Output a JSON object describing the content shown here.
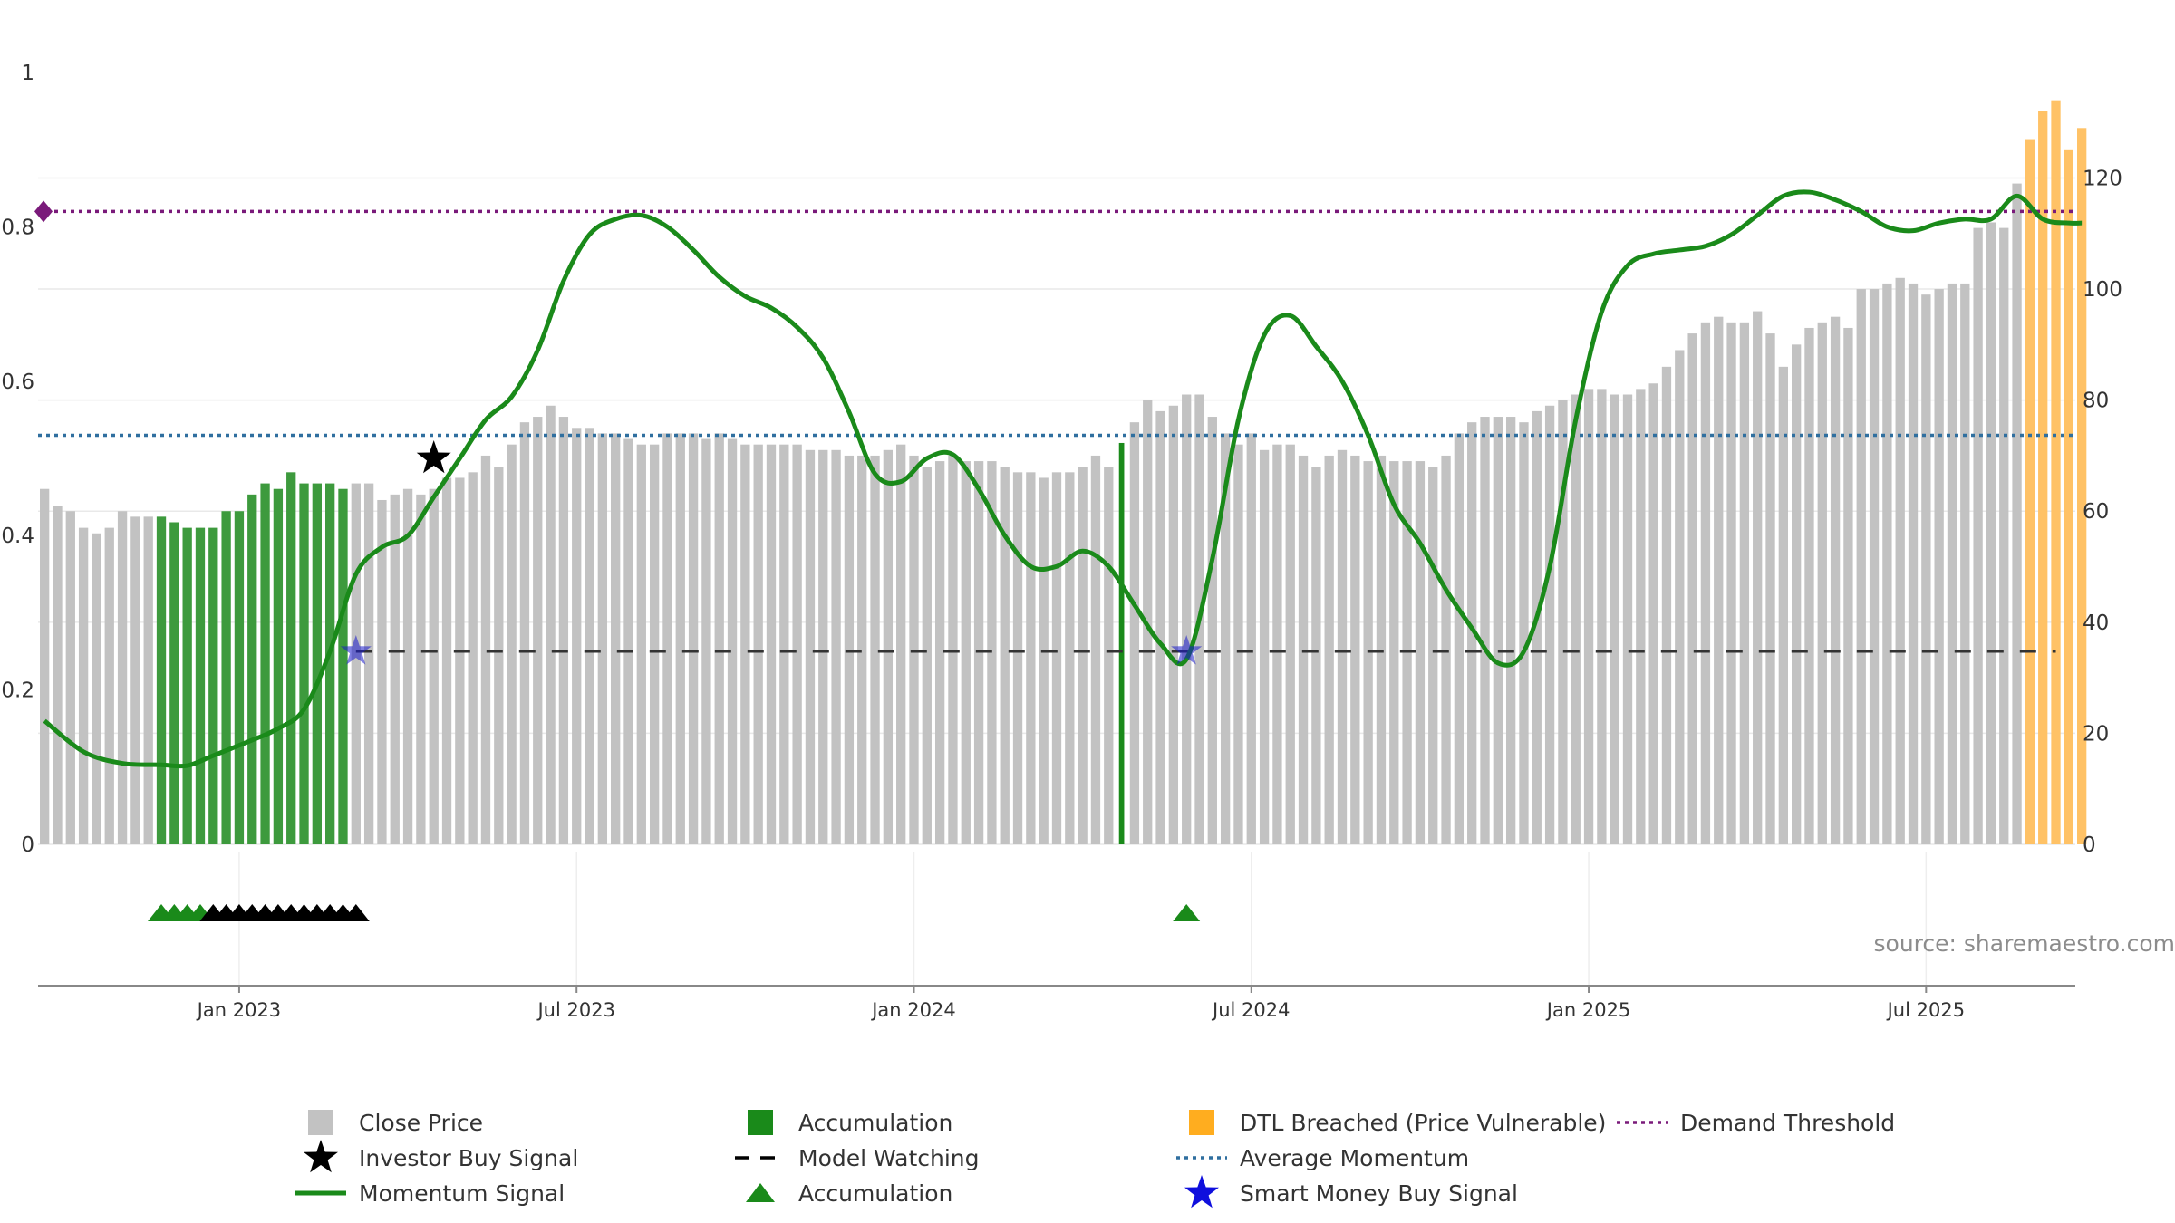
{
  "source_text": "source: sharemaestro.com",
  "colors": {
    "close_price": "#c2c2c2",
    "accumulation": "#3d9a3d",
    "dtl_breached": "#ffc266",
    "momentum": "#1a8a1a",
    "average_momentum": "#2f6f9f",
    "demand_threshold": "#7a1a7a",
    "model_watching": "#333333",
    "smart_money": "#1a1acc",
    "investor_signal": "#000000",
    "grid": "#e9e9e9"
  },
  "chart_data": {
    "type": "bar",
    "y_left": {
      "ticks": [
        "0",
        "0.2",
        "0.4",
        "0.6",
        "0.8",
        "1"
      ],
      "range": [
        0,
        1
      ]
    },
    "y_right": {
      "ticks": [
        "0",
        "20",
        "40",
        "60",
        "80",
        "100",
        "120"
      ],
      "range": [
        0,
        139
      ]
    },
    "x": {
      "ticks": [
        "Jan 2023",
        "Jul 2023",
        "Jan 2024",
        "Jul 2024",
        "Jan 2025",
        "Jul 2025"
      ],
      "tick_weeks": [
        15,
        41,
        67,
        93,
        119,
        145
      ]
    },
    "weeks": 157,
    "price": [
      64,
      61,
      60,
      57,
      56,
      57,
      60,
      59,
      59,
      59,
      58,
      57,
      57,
      57,
      60,
      60,
      63,
      65,
      64,
      67,
      65,
      65,
      65,
      64,
      65,
      65,
      62,
      63,
      64,
      63,
      64,
      66,
      66,
      67,
      70,
      68,
      72,
      76,
      77,
      79,
      77,
      75,
      75,
      74,
      74,
      73,
      72,
      72,
      74,
      74,
      74,
      73,
      74,
      73,
      72,
      72,
      72,
      72,
      72,
      71,
      71,
      71,
      70,
      70,
      70,
      71,
      72,
      70,
      68,
      69,
      70,
      69,
      69,
      69,
      68,
      67,
      67,
      66,
      67,
      67,
      68,
      70,
      68,
      72,
      76,
      80,
      78,
      79,
      81,
      81,
      77,
      74,
      72,
      74,
      71,
      72,
      72,
      70,
      68,
      70,
      71,
      70,
      69,
      70,
      69,
      69,
      69,
      68,
      70,
      74,
      76,
      77,
      77,
      77,
      76,
      78,
      79,
      80,
      81,
      82,
      82,
      81,
      81,
      82,
      83,
      86,
      89,
      92,
      94,
      95,
      94,
      94,
      96,
      92,
      86,
      90,
      93,
      94,
      95,
      93,
      100,
      100,
      101,
      102,
      101,
      99,
      100,
      101,
      101,
      111,
      112,
      111,
      119,
      127,
      132,
      134,
      125,
      129
    ],
    "bar_category": [
      "p",
      "p",
      "p",
      "p",
      "p",
      "p",
      "p",
      "p",
      "p",
      "a",
      "a",
      "a",
      "a",
      "a",
      "a",
      "a",
      "a",
      "a",
      "a",
      "a",
      "a",
      "a",
      "a",
      "a",
      "p",
      "p",
      "p",
      "p",
      "p",
      "p",
      "p",
      "p",
      "p",
      "p",
      "p",
      "p",
      "p",
      "p",
      "p",
      "p",
      "p",
      "p",
      "p",
      "p",
      "p",
      "p",
      "p",
      "p",
      "p",
      "p",
      "p",
      "p",
      "p",
      "p",
      "p",
      "p",
      "p",
      "p",
      "p",
      "p",
      "p",
      "p",
      "p",
      "p",
      "p",
      "p",
      "p",
      "p",
      "p",
      "p",
      "p",
      "p",
      "p",
      "p",
      "p",
      "p",
      "p",
      "p",
      "p",
      "p",
      "p",
      "p",
      "p",
      "a",
      "p",
      "p",
      "p",
      "p",
      "p",
      "p",
      "p",
      "p",
      "p",
      "p",
      "p",
      "p",
      "p",
      "p",
      "p",
      "p",
      "p",
      "p",
      "p",
      "p",
      "p",
      "p",
      "p",
      "p",
      "p",
      "p",
      "p",
      "p",
      "p",
      "p",
      "p",
      "p",
      "p",
      "p",
      "p",
      "p",
      "p",
      "p",
      "p",
      "p",
      "p",
      "p",
      "p",
      "p",
      "p",
      "p",
      "p",
      "p",
      "p",
      "p",
      "p",
      "p",
      "p",
      "p",
      "p",
      "p",
      "p",
      "p",
      "p",
      "p",
      "p",
      "p",
      "p",
      "p",
      "p",
      "p",
      "p",
      "p",
      "p",
      "d",
      "d",
      "d",
      "d",
      "d",
      "d",
      "d"
    ],
    "momentum": [
      [
        0,
        0.16
      ],
      [
        3,
        0.12
      ],
      [
        6,
        0.105
      ],
      [
        9,
        0.103
      ],
      [
        11,
        0.102
      ],
      [
        13,
        0.115
      ],
      [
        16,
        0.135
      ],
      [
        18,
        0.15
      ],
      [
        20,
        0.175
      ],
      [
        22,
        0.25
      ],
      [
        24,
        0.35
      ],
      [
        26,
        0.385
      ],
      [
        28,
        0.4
      ],
      [
        30,
        0.45
      ],
      [
        32,
        0.5
      ],
      [
        34,
        0.55
      ],
      [
        36,
        0.58
      ],
      [
        38,
        0.64
      ],
      [
        40,
        0.73
      ],
      [
        42,
        0.79
      ],
      [
        44,
        0.81
      ],
      [
        46,
        0.815
      ],
      [
        48,
        0.8
      ],
      [
        50,
        0.77
      ],
      [
        52,
        0.735
      ],
      [
        54,
        0.71
      ],
      [
        56,
        0.695
      ],
      [
        58,
        0.67
      ],
      [
        60,
        0.63
      ],
      [
        62,
        0.56
      ],
      [
        64,
        0.48
      ],
      [
        66,
        0.47
      ],
      [
        68,
        0.5
      ],
      [
        70,
        0.505
      ],
      [
        72,
        0.46
      ],
      [
        74,
        0.4
      ],
      [
        76,
        0.36
      ],
      [
        78,
        0.36
      ],
      [
        80,
        0.38
      ],
      [
        82,
        0.36
      ],
      [
        84,
        0.31
      ],
      [
        86,
        0.26
      ],
      [
        88,
        0.24
      ],
      [
        90,
        0.37
      ],
      [
        92,
        0.55
      ],
      [
        94,
        0.66
      ],
      [
        96,
        0.685
      ],
      [
        98,
        0.645
      ],
      [
        100,
        0.6
      ],
      [
        102,
        0.53
      ],
      [
        104,
        0.44
      ],
      [
        106,
        0.39
      ],
      [
        108,
        0.33
      ],
      [
        110,
        0.28
      ],
      [
        112,
        0.235
      ],
      [
        114,
        0.25
      ],
      [
        116,
        0.36
      ],
      [
        118,
        0.55
      ],
      [
        120,
        0.69
      ],
      [
        122,
        0.75
      ],
      [
        124,
        0.765
      ],
      [
        126,
        0.77
      ],
      [
        128,
        0.775
      ],
      [
        130,
        0.79
      ],
      [
        132,
        0.815
      ],
      [
        134,
        0.84
      ],
      [
        136,
        0.845
      ],
      [
        138,
        0.835
      ],
      [
        140,
        0.82
      ],
      [
        142,
        0.8
      ],
      [
        144,
        0.795
      ],
      [
        146,
        0.805
      ],
      [
        148,
        0.81
      ],
      [
        150,
        0.81
      ],
      [
        152,
        0.84
      ],
      [
        154,
        0.81
      ],
      [
        156,
        0.805
      ],
      [
        157,
        0.805
      ]
    ],
    "average_momentum": 0.53,
    "demand_threshold": 0.82,
    "model_watching": {
      "y": 0.25,
      "from_week": 24,
      "to_week": 157
    },
    "investor_buy_signal": [
      {
        "week": 30,
        "y": 0.5
      }
    ],
    "smart_money_buy_signal": [
      {
        "week": 24,
        "y": 0.25
      },
      {
        "week": 88,
        "y": 0.25
      }
    ],
    "accumulation_markers": {
      "green": [
        9,
        10,
        11,
        12,
        88
      ],
      "black": [
        13,
        14,
        15,
        16,
        17,
        18,
        19,
        20,
        21,
        22,
        23,
        24
      ]
    },
    "legend": [
      {
        "label": "Close Price",
        "symbol": "square",
        "color": "#c2c2c2"
      },
      {
        "label": "Investor Buy Signal",
        "symbol": "star",
        "color": "#000000"
      },
      {
        "label": "Momentum Signal",
        "symbol": "line",
        "color": "#1a8a1a"
      },
      {
        "label": "Accumulation",
        "symbol": "square",
        "color": "#1a8a1a"
      },
      {
        "label": "Model Watching",
        "symbol": "dash",
        "color": "#000000"
      },
      {
        "label": "Accumulation",
        "symbol": "triangle",
        "color": "#1a8a1a"
      },
      {
        "label": "DTL Breached (Price Vulnerable)",
        "symbol": "square",
        "color": "#ffad1f"
      },
      {
        "label": "Average Momentum",
        "symbol": "dot-line",
        "color": "#2f6f9f"
      },
      {
        "label": "Smart Money Buy Signal",
        "symbol": "star",
        "color": "#0f0fdd"
      },
      {
        "label": "Demand Threshold",
        "symbol": "dot-line",
        "color": "#7a1a7a"
      }
    ]
  }
}
